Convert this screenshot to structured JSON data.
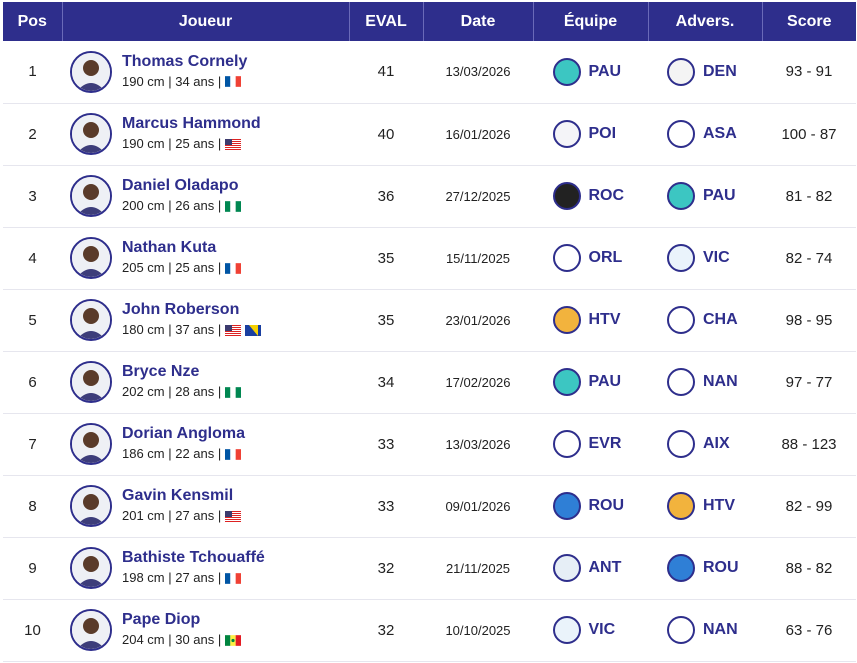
{
  "headers": {
    "pos": "Pos",
    "player": "Joueur",
    "eval": "EVAL",
    "date": "Date",
    "team": "Équipe",
    "opponent": "Advers.",
    "score": "Score"
  },
  "colors": {
    "header_bg": "#2e2e8c",
    "accent": "#2e2e8c",
    "row_border": "#e6e6ee"
  },
  "rows": [
    {
      "pos": "1",
      "name": "Thomas Cornely",
      "sub": "190 cm | 34 ans |",
      "flags": [
        "fr"
      ],
      "eval": "41",
      "date": "13/03/2026",
      "team": "PAU",
      "team_icon": "pau-logo",
      "opp": "DEN",
      "opp_icon": "den-logo",
      "score": "93 - 91"
    },
    {
      "pos": "2",
      "name": "Marcus Hammond",
      "sub": "190 cm | 25 ans |",
      "flags": [
        "us"
      ],
      "eval": "40",
      "date": "16/01/2026",
      "team": "POI",
      "team_icon": "poi-logo",
      "opp": "ASA",
      "opp_icon": "asa-logo",
      "score": "100 - 87"
    },
    {
      "pos": "3",
      "name": "Daniel Oladapo",
      "sub": "200 cm | 26 ans |",
      "flags": [
        "ng"
      ],
      "eval": "36",
      "date": "27/12/2025",
      "team": "ROC",
      "team_icon": "roc-logo",
      "opp": "PAU",
      "opp_icon": "pau-logo",
      "score": "81 - 82"
    },
    {
      "pos": "4",
      "name": "Nathan Kuta",
      "sub": "205 cm | 25 ans |",
      "flags": [
        "fr"
      ],
      "eval": "35",
      "date": "15/11/2025",
      "team": "ORL",
      "team_icon": "orl-logo",
      "opp": "VIC",
      "opp_icon": "vic-logo",
      "score": "82 - 74"
    },
    {
      "pos": "5",
      "name": "John Roberson",
      "sub": "180 cm | 37 ans |",
      "flags": [
        "us",
        "ba"
      ],
      "eval": "35",
      "date": "23/01/2026",
      "team": "HTV",
      "team_icon": "htv-logo",
      "opp": "CHA",
      "opp_icon": "cha-logo",
      "score": "98 - 95"
    },
    {
      "pos": "6",
      "name": "Bryce Nze",
      "sub": "202 cm | 28 ans |",
      "flags": [
        "ng"
      ],
      "eval": "34",
      "date": "17/02/2026",
      "team": "PAU",
      "team_icon": "pau-logo",
      "opp": "NAN",
      "opp_icon": "nan-logo",
      "score": "97 - 77"
    },
    {
      "pos": "7",
      "name": "Dorian Angloma",
      "sub": "186 cm | 22 ans |",
      "flags": [
        "fr"
      ],
      "eval": "33",
      "date": "13/03/2026",
      "team": "EVR",
      "team_icon": "evr-logo",
      "opp": "AIX",
      "opp_icon": "aix-logo",
      "score": "88 - 123"
    },
    {
      "pos": "8",
      "name": "Gavin Kensmil",
      "sub": "201 cm | 27 ans |",
      "flags": [
        "us"
      ],
      "eval": "33",
      "date": "09/01/2026",
      "team": "ROU",
      "team_icon": "rou-logo",
      "opp": "HTV",
      "opp_icon": "htv-logo",
      "score": "82 - 99"
    },
    {
      "pos": "9",
      "name": "Bathiste Tchouaffé",
      "sub": "198 cm | 27 ans |",
      "flags": [
        "fr"
      ],
      "eval": "32",
      "date": "21/11/2025",
      "team": "ANT",
      "team_icon": "ant-logo",
      "opp": "ROU",
      "opp_icon": "rou-logo",
      "score": "88 - 82"
    },
    {
      "pos": "10",
      "name": "Pape Diop",
      "sub": "204 cm | 30 ans |",
      "flags": [
        "sn"
      ],
      "eval": "32",
      "date": "10/10/2025",
      "team": "VIC",
      "team_icon": "vic-logo",
      "opp": "NAN",
      "opp_icon": "nan-logo",
      "score": "63 - 76"
    }
  ]
}
